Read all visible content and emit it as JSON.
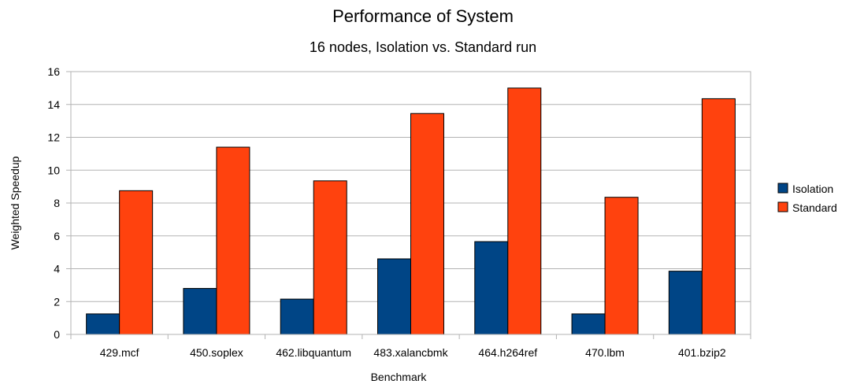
{
  "chart_data": {
    "type": "bar",
    "title": "Performance of System",
    "subtitle": "16 nodes, Isolation vs. Standard run",
    "xlabel": "Benchmark",
    "ylabel": "Weighted Speedup",
    "ylim": [
      0,
      16
    ],
    "yticks": [
      0,
      2,
      4,
      6,
      8,
      10,
      12,
      14,
      16
    ],
    "grid": true,
    "legend_position": "right",
    "categories": [
      "429.mcf",
      "450.soplex",
      "462.libquantum",
      "483.xalancbmk",
      "464.h264ref",
      "470.lbm",
      "401.bzip2"
    ],
    "series": [
      {
        "name": "Isolation",
        "color": "#004586",
        "values": [
          1.25,
          2.8,
          2.15,
          4.6,
          5.65,
          1.25,
          3.85
        ]
      },
      {
        "name": "Standard",
        "color": "#ff420e",
        "values": [
          8.75,
          11.4,
          9.35,
          13.45,
          15.0,
          8.35,
          14.35
        ]
      }
    ]
  }
}
